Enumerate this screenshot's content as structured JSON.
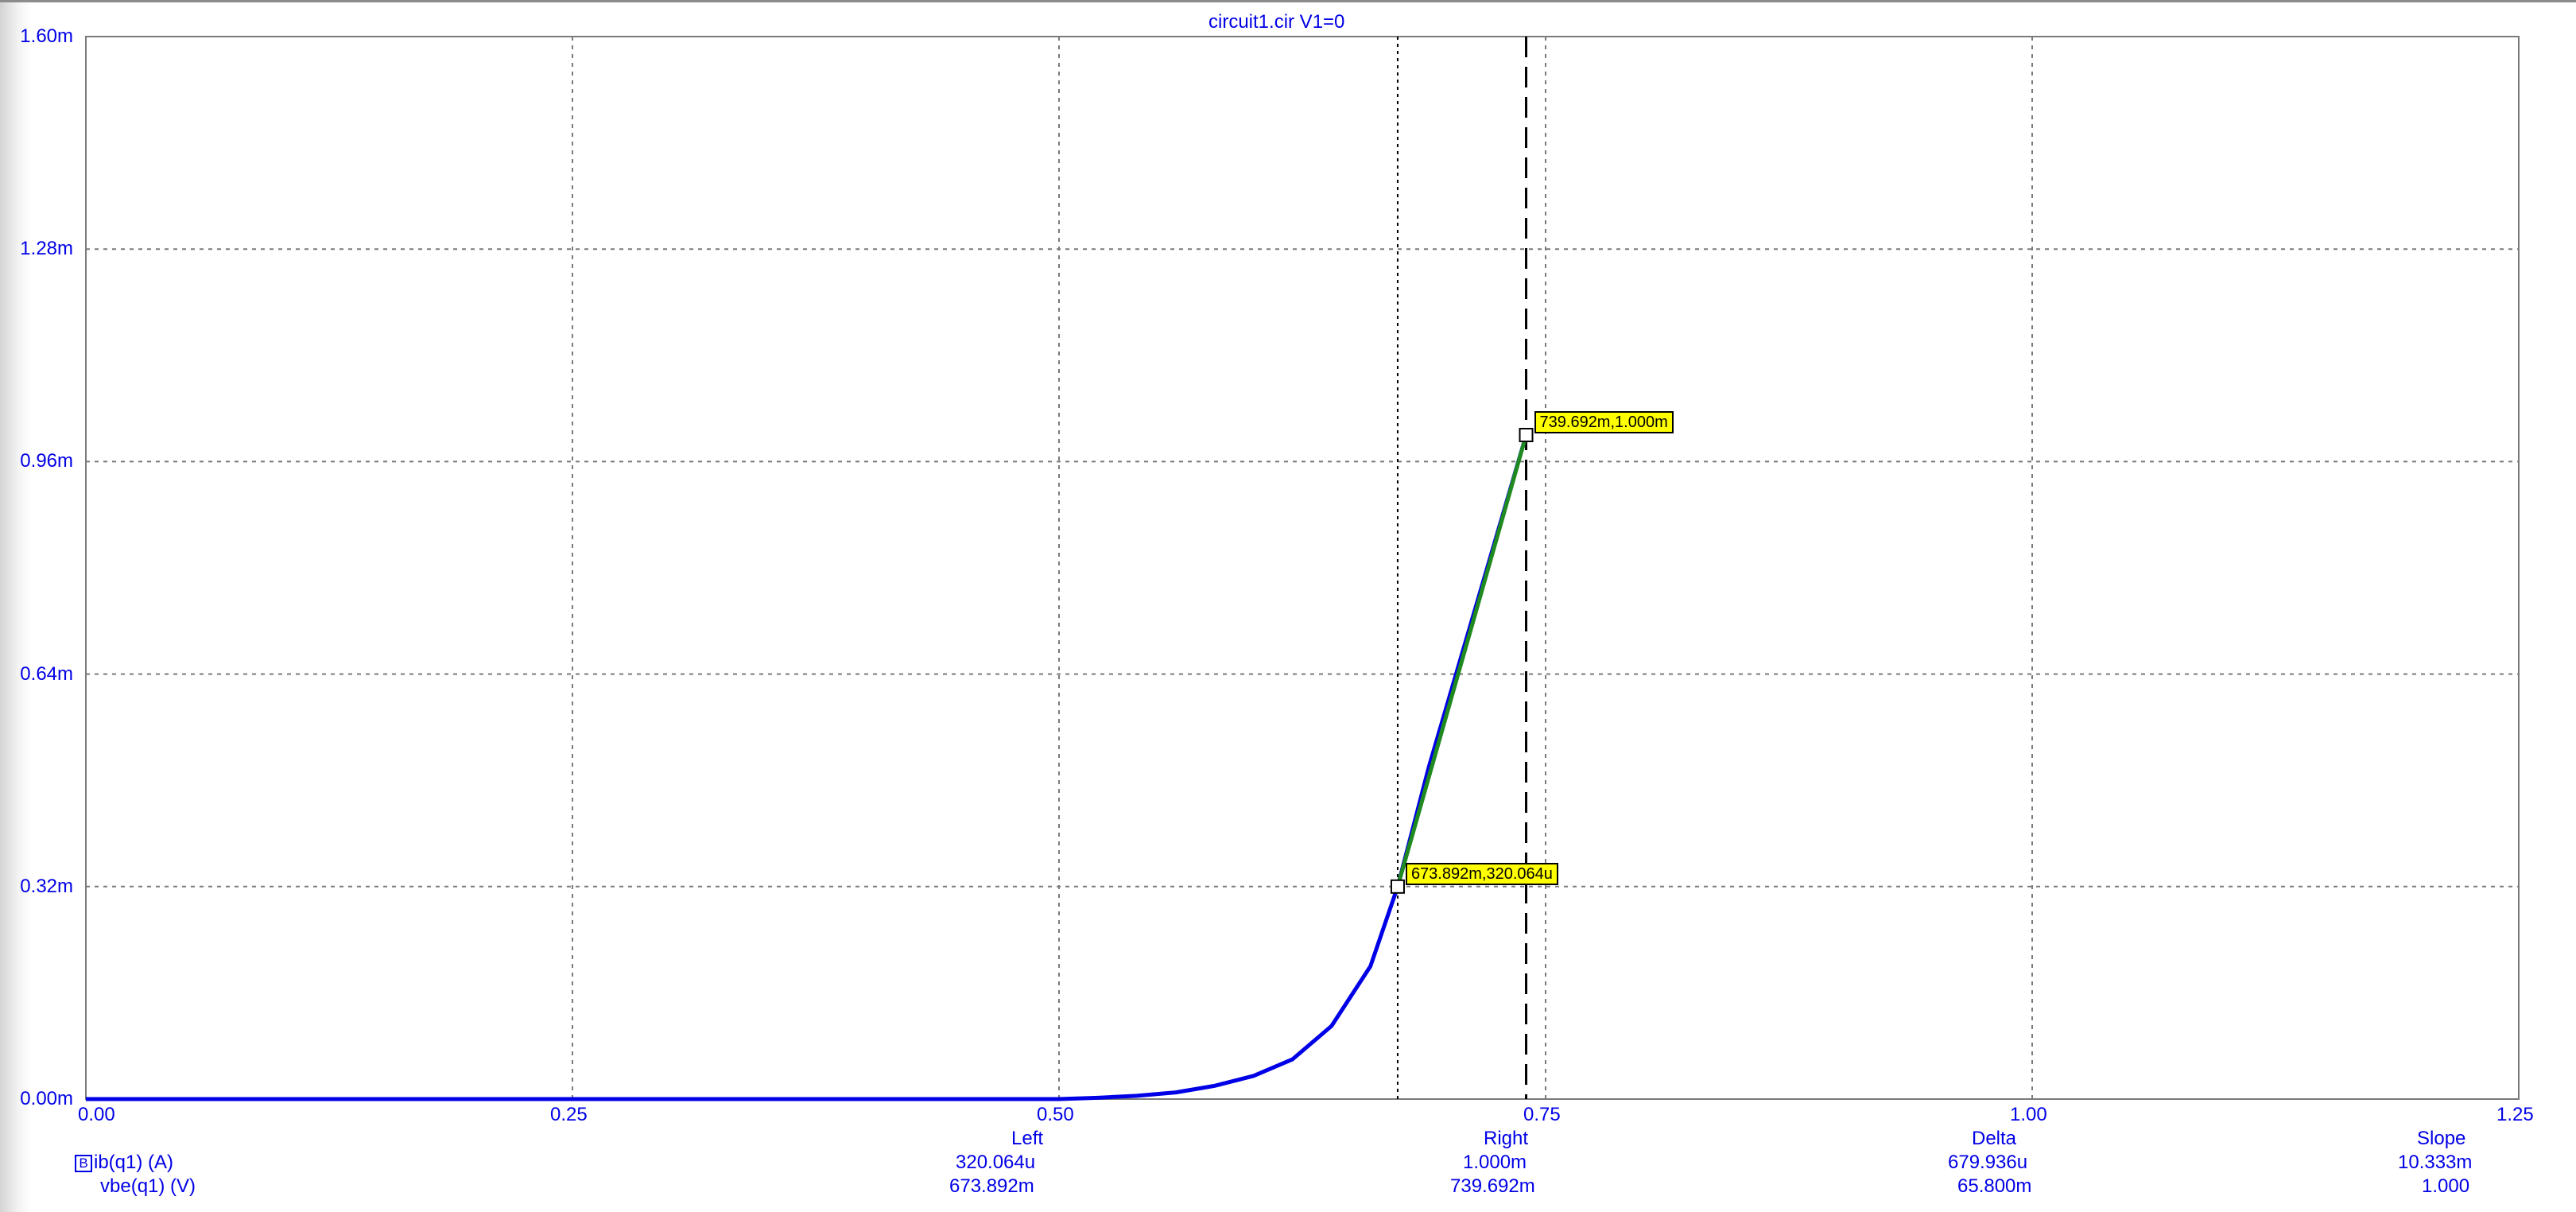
{
  "chart_data": {
    "type": "line",
    "title": "circuit1.cir V1=0",
    "x_ticks": [
      0.0,
      0.25,
      0.5,
      0.75,
      1.0,
      1.25
    ],
    "x_tick_labels": [
      "0.00",
      "0.25",
      "0.50",
      "0.75",
      "1.00",
      "1.25"
    ],
    "y_ticks": [
      0.0,
      0.32,
      0.64,
      0.96,
      1.28,
      1.6
    ],
    "y_tick_labels": [
      "0.00m",
      "0.32m",
      "0.64m",
      "0.96m",
      "1.28m",
      "1.60m"
    ],
    "xlim": [
      0.0,
      1.25
    ],
    "ylim": [
      0.0,
      1.6
    ],
    "grid": true,
    "series": [
      {
        "name": "ib(q1) (A)",
        "color": "#0000e6",
        "x": [
          0.0,
          0.5,
          0.52,
          0.54,
          0.56,
          0.58,
          0.6,
          0.62,
          0.64,
          0.66,
          0.674,
          0.69,
          0.71,
          0.725,
          0.74
        ],
        "y": [
          0.0,
          0.0,
          0.002,
          0.005,
          0.01,
          0.02,
          0.035,
          0.06,
          0.11,
          0.2,
          0.32,
          0.5,
          0.7,
          0.85,
          1.0
        ]
      }
    ],
    "cursor_chord": {
      "color": "#1f8a1f",
      "from": [
        0.674,
        0.32
      ],
      "to": [
        0.74,
        1.0
      ]
    },
    "cursors": [
      {
        "x": 0.674,
        "y": 0.32,
        "label": "673.892m,320.064u",
        "line_style": "dotted"
      },
      {
        "x": 0.74,
        "y": 1.0,
        "label": "739.692m,1.000m",
        "line_style": "dashed"
      }
    ],
    "readout": {
      "traces": [
        {
          "marker": "B",
          "name": "ib(q1) (A)",
          "values": [
            "320.064u",
            "1.000m",
            "679.936u",
            "10.333m"
          ]
        },
        {
          "marker": "",
          "name": "vbe(q1) (V)",
          "values": [
            "673.892m",
            "739.692m",
            "65.800m",
            "1.000"
          ]
        }
      ],
      "columns": [
        "Left",
        "Right",
        "Delta",
        "Slope"
      ]
    }
  }
}
